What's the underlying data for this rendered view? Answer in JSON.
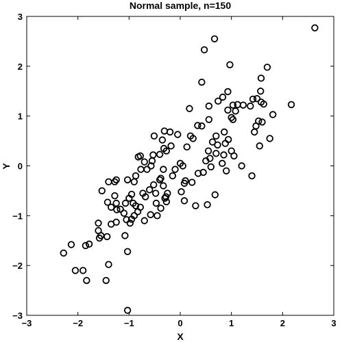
{
  "chart_data": {
    "type": "scatter",
    "title": "Normal sample, n=150",
    "xlabel": "X",
    "ylabel": "Y",
    "xlim": [
      -3,
      3
    ],
    "ylim": [
      -3,
      3
    ],
    "xticks": [
      -3,
      -2,
      -1,
      0,
      1,
      2,
      3
    ],
    "yticks": [
      -3,
      -2,
      -1,
      0,
      1,
      2,
      3
    ],
    "xtick_labels": [
      "−3",
      "−2",
      "−1",
      "0",
      "1",
      "2",
      "3"
    ],
    "ytick_labels": [
      "−3",
      "−2",
      "−1",
      "0",
      "1",
      "2",
      "3"
    ],
    "grid": false,
    "marker": "open-circle",
    "marker_color": "#000000",
    "series": [
      {
        "points": [
          [
            2.63,
            2.77
          ],
          [
            0.67,
            2.55
          ],
          [
            0.47,
            2.33
          ],
          [
            0.97,
            2.03
          ],
          [
            1.7,
            1.98
          ],
          [
            0.42,
            1.68
          ],
          [
            1.58,
            1.76
          ],
          [
            0.93,
            1.49
          ],
          [
            0.74,
            1.3
          ],
          [
            0.83,
            1.38
          ],
          [
            1.57,
            1.5
          ],
          [
            1.23,
            1.22
          ],
          [
            1.42,
            1.34
          ],
          [
            1.5,
            1.35
          ],
          [
            1.58,
            1.28
          ],
          [
            1.03,
            1.22
          ],
          [
            1.12,
            1.23
          ],
          [
            0.93,
            1.12
          ],
          [
            1.08,
            1.1
          ],
          [
            1.37,
            1.2
          ],
          [
            2.17,
            1.23
          ],
          [
            1.63,
            1.24
          ],
          [
            0.56,
            1.2
          ],
          [
            0.56,
            0.93
          ],
          [
            1.0,
            0.97
          ],
          [
            1.03,
            0.93
          ],
          [
            1.53,
            0.9
          ],
          [
            1.6,
            0.88
          ],
          [
            1.81,
            1.03
          ],
          [
            0.18,
            1.15
          ],
          [
            0.42,
            0.8
          ],
          [
            0.34,
            0.81
          ],
          [
            0.86,
            0.68
          ],
          [
            0.94,
            0.53
          ],
          [
            1.45,
            0.68
          ],
          [
            1.48,
            0.8
          ],
          [
            0.7,
            0.6
          ],
          [
            0.63,
            0.48
          ],
          [
            0.73,
            0.42
          ],
          [
            0.88,
            0.45
          ],
          [
            0.55,
            0.3
          ],
          [
            0.25,
            0.55
          ],
          [
            0.2,
            0.6
          ],
          [
            0.13,
            0.38
          ],
          [
            -0.05,
            0.63
          ],
          [
            -0.2,
            0.68
          ],
          [
            -0.31,
            0.7
          ],
          [
            -0.51,
            0.6
          ],
          [
            -0.18,
            0.4
          ],
          [
            -0.35,
            0.52
          ],
          [
            -0.32,
            0.35
          ],
          [
            -0.27,
            0.3
          ],
          [
            -0.4,
            0.23
          ],
          [
            -0.53,
            0.22
          ],
          [
            -0.55,
            0.1
          ],
          [
            -0.7,
            0.08
          ],
          [
            -0.78,
            0.2
          ],
          [
            -0.82,
            0.18
          ],
          [
            0.58,
            0.15
          ],
          [
            0.85,
            0.22
          ],
          [
            1.0,
            0.3
          ],
          [
            1.05,
            0.2
          ],
          [
            1.2,
            0.0
          ],
          [
            1.55,
            0.4
          ],
          [
            1.75,
            0.55
          ],
          [
            0.5,
            0.1
          ],
          [
            0.7,
            0.25
          ],
          [
            0.82,
            0.05
          ],
          [
            0.0,
            0.05
          ],
          [
            0.05,
            0.0
          ],
          [
            -0.1,
            -0.07
          ],
          [
            -0.33,
            -0.07
          ],
          [
            -0.57,
            0.0
          ],
          [
            -0.65,
            -0.07
          ],
          [
            -0.77,
            -0.07
          ],
          [
            -0.87,
            -0.2
          ],
          [
            -0.9,
            -0.32
          ],
          [
            -1.03,
            -0.28
          ],
          [
            -1.25,
            -0.28
          ],
          [
            -1.28,
            -0.32
          ],
          [
            -1.4,
            -0.32
          ],
          [
            -1.53,
            -0.5
          ],
          [
            -1.42,
            -0.73
          ],
          [
            -1.35,
            -0.83
          ],
          [
            -1.28,
            -0.6
          ],
          [
            -1.25,
            -0.75
          ],
          [
            -1.24,
            -0.88
          ],
          [
            -1.17,
            -0.87
          ],
          [
            -1.07,
            -0.75
          ],
          [
            -1.0,
            -0.65
          ],
          [
            -0.95,
            -0.57
          ],
          [
            -0.92,
            -0.75
          ],
          [
            -0.87,
            -0.8
          ],
          [
            -0.83,
            -0.92
          ],
          [
            -0.78,
            -0.83
          ],
          [
            -0.73,
            -0.55
          ],
          [
            -0.68,
            -0.62
          ],
          [
            -0.6,
            -0.48
          ],
          [
            -0.52,
            -0.38
          ],
          [
            -0.48,
            -0.55
          ],
          [
            -0.47,
            -0.75
          ],
          [
            -0.4,
            -0.28
          ],
          [
            -0.38,
            -0.25
          ],
          [
            -0.33,
            -0.4
          ],
          [
            -0.3,
            -0.65
          ],
          [
            -0.28,
            -0.62
          ],
          [
            -0.27,
            -0.72
          ],
          [
            -0.25,
            -0.55
          ],
          [
            -0.15,
            -0.2
          ],
          [
            0.08,
            -0.35
          ],
          [
            0.1,
            -0.3
          ],
          [
            0.23,
            -0.33
          ],
          [
            0.35,
            -0.15
          ],
          [
            0.45,
            -0.13
          ],
          [
            0.6,
            -0.02
          ],
          [
            0.9,
            -0.1
          ],
          [
            1.4,
            -0.2
          ],
          [
            0.02,
            -0.52
          ],
          [
            0.08,
            -0.7
          ],
          [
            0.3,
            -0.8
          ],
          [
            0.53,
            -0.78
          ],
          [
            0.68,
            -0.58
          ],
          [
            -0.38,
            -0.85
          ],
          [
            -0.45,
            -1.0
          ],
          [
            -0.58,
            -0.98
          ],
          [
            -0.7,
            -1.1
          ],
          [
            -0.9,
            -1.0
          ],
          [
            -0.95,
            -1.07
          ],
          [
            -0.98,
            -1.15
          ],
          [
            -1.05,
            -1.08
          ],
          [
            -1.1,
            -0.95
          ],
          [
            -1.25,
            -1.13
          ],
          [
            -1.35,
            -1.17
          ],
          [
            -1.43,
            -1.42
          ],
          [
            -1.6,
            -1.15
          ],
          [
            -1.6,
            -1.3
          ],
          [
            -1.55,
            -1.4
          ],
          [
            -1.58,
            -1.45
          ],
          [
            -1.85,
            -1.6
          ],
          [
            -2.13,
            -1.58
          ],
          [
            -2.28,
            -1.75
          ],
          [
            -1.78,
            -1.57
          ],
          [
            -1.08,
            -1.4
          ],
          [
            -1.03,
            -1.72
          ],
          [
            -1.4,
            -1.98
          ],
          [
            -2.05,
            -2.1
          ],
          [
            -1.9,
            -2.1
          ],
          [
            -1.83,
            -2.3
          ],
          [
            -1.45,
            -2.3
          ],
          [
            -1.03,
            -2.9
          ]
        ]
      }
    ]
  }
}
